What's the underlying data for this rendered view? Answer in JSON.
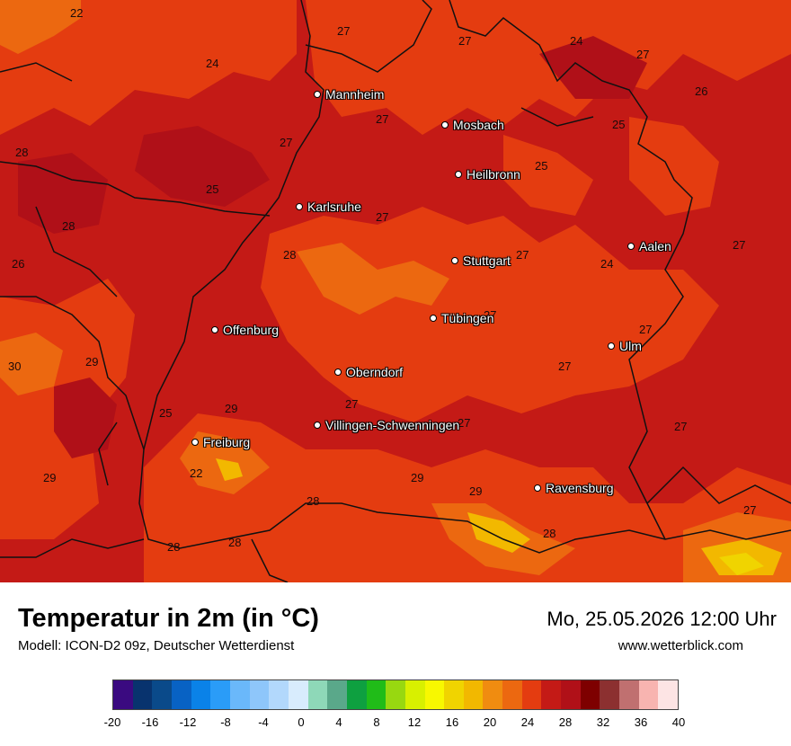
{
  "map": {
    "cities": [
      {
        "name": "Mannheim",
        "id": "mannheim"
      },
      {
        "name": "Mosbach",
        "id": "mosbach"
      },
      {
        "name": "Heilbronn",
        "id": "heilbronn"
      },
      {
        "name": "Karlsruhe",
        "id": "karlsruhe"
      },
      {
        "name": "Stuttgart",
        "id": "stuttgart"
      },
      {
        "name": "Aalen",
        "id": "aalen"
      },
      {
        "name": "Tübingen",
        "id": "tuebingen"
      },
      {
        "name": "Offenburg",
        "id": "offenburg"
      },
      {
        "name": "Ulm",
        "id": "ulm"
      },
      {
        "name": "Oberndorf",
        "id": "oberndorf"
      },
      {
        "name": "Villingen-Schwenningen",
        "id": "villingen"
      },
      {
        "name": "Freiburg",
        "id": "freiburg"
      },
      {
        "name": "Ravensburg",
        "id": "ravensburg"
      }
    ],
    "values": [
      "22",
      "27",
      "27",
      "24",
      "27",
      "24",
      "26",
      "27",
      "25",
      "28",
      "27",
      "25",
      "25",
      "28",
      "27",
      "26",
      "27",
      "28",
      "27",
      "24",
      "27",
      "27",
      "30",
      "29",
      "27",
      "25",
      "29",
      "27",
      "27",
      "27",
      "22",
      "29",
      "29",
      "29",
      "28",
      "28",
      "28",
      "27",
      "28"
    ]
  },
  "footer": {
    "title": "Temperatur in 2m (in °C)",
    "model": "Modell: ICON-D2 09z, Deutscher Wetterdienst",
    "datetime": "Mo, 25.05.2026 12:00 Uhr",
    "website": "www.wetterblick.com"
  },
  "colorbar": {
    "colors": [
      "#3a0a80",
      "#08336e",
      "#0a4a8a",
      "#0862c4",
      "#0a82e8",
      "#2a9cf8",
      "#6ab8fa",
      "#8ec6fa",
      "#b2d8fc",
      "#d8ecfd",
      "#8ed8b8",
      "#5aa88a",
      "#0ea040",
      "#20bc18",
      "#98d810",
      "#d8f000",
      "#f8f800",
      "#f0d400",
      "#f2b800",
      "#f08c10",
      "#ec6810",
      "#e43c10",
      "#c41a16",
      "#b01018",
      "#7e0000",
      "#8c3030",
      "#c07070",
      "#f8b4b0",
      "#fde4e4"
    ],
    "ticks": [
      "-20",
      "-16",
      "-12",
      "-8",
      "-4",
      "0",
      "4",
      "8",
      "12",
      "16",
      "20",
      "24",
      "28",
      "32",
      "36",
      "40"
    ]
  }
}
